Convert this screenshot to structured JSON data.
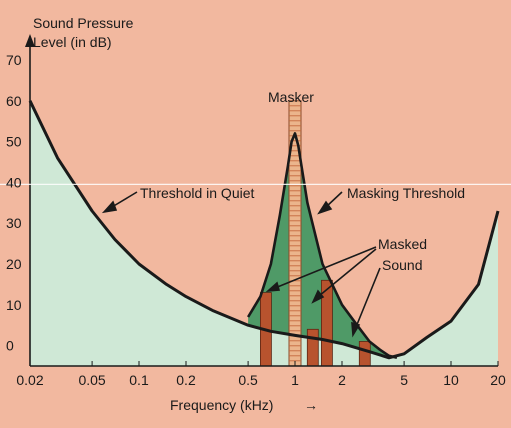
{
  "chart_data": {
    "type": "area",
    "xscale": "log",
    "xlim": [
      0.02,
      20
    ],
    "ylim": [
      -5,
      70
    ],
    "ylabel": "Sound Pressure Level (in dB)",
    "ylabel_lines": [
      "Sound Pressure",
      "Level (in dB)"
    ],
    "xlabel": "Frequency (kHz)",
    "xlabel_arrow": "→",
    "ytick_values": [
      0,
      10,
      20,
      30,
      40,
      50,
      60,
      70
    ],
    "ytick_labels": [
      "0",
      "10",
      "20",
      "30",
      "40",
      "50",
      "60",
      "70"
    ],
    "xtick_values": [
      0.02,
      0.05,
      0.1,
      0.2,
      0.5,
      1,
      2,
      5,
      10,
      20
    ],
    "xtick_labels": [
      "0.02",
      "0.05",
      "0.1",
      "0.2",
      "0.5",
      "1",
      "2",
      "5",
      "10",
      "20"
    ],
    "grid": false,
    "series": [
      {
        "name": "Threshold in Quiet",
        "x": [
          0.02,
          0.03,
          0.05,
          0.07,
          0.1,
          0.15,
          0.2,
          0.3,
          0.5,
          0.7,
          1,
          1.5,
          2,
          3,
          4,
          5,
          7,
          10,
          15,
          20
        ],
        "y": [
          60,
          46,
          33,
          26,
          20,
          15,
          12,
          8.5,
          5,
          3.5,
          2.5,
          1.5,
          0.5,
          -1.5,
          -3,
          -2,
          2,
          6,
          15,
          33
        ]
      },
      {
        "name": "Masking Threshold",
        "x": [
          0.5,
          0.6,
          0.7,
          0.8,
          0.9,
          0.95,
          1,
          1.05,
          1.1,
          1.2,
          1.5,
          2,
          2.5,
          3,
          3.5,
          4,
          4.5
        ],
        "y": [
          7,
          12,
          20,
          32,
          44,
          50,
          52,
          49,
          44,
          35,
          20,
          10,
          5,
          1,
          -1,
          -2.5,
          -3
        ]
      }
    ],
    "masker": {
      "label": "Masker",
      "freq": 1,
      "level": 60
    },
    "masked_sounds": {
      "label_lines": [
        "Masked",
        "Sound"
      ],
      "bars": [
        {
          "freq": 0.65,
          "level": 13
        },
        {
          "freq": 1.3,
          "level": 4
        },
        {
          "freq": 1.6,
          "level": 16
        },
        {
          "freq": 2.8,
          "level": 1
        }
      ]
    }
  },
  "colors": {
    "background": "#f2b89f",
    "quiet_fill": "#cfe8d6",
    "masking_fill": "#4f9a67",
    "curve": "#1a1a1a",
    "bar": "#b8532e",
    "masker": "#ebb58c"
  }
}
